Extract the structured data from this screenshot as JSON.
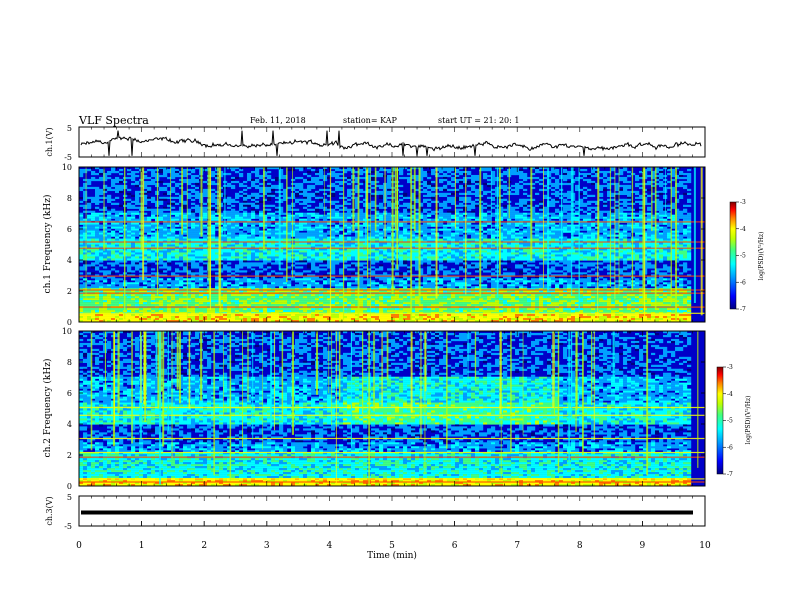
{
  "header": {
    "title": "VLF Spectra",
    "date": "Feb. 11, 2018",
    "station": "station= KAP",
    "start": "start  UT  =   21: 20: 1"
  },
  "chart_data": [
    {
      "type": "line",
      "ylabel": "ch.1(V)",
      "ylim": [
        -5,
        5
      ],
      "yticks": [
        "5",
        "-5"
      ],
      "xlim": [
        0,
        10
      ],
      "description_series": "noisy waveform around -1 V"
    },
    {
      "type": "heatmap",
      "ylabel": "ch.1  Frequency  (kHz)",
      "ylim": [
        0,
        10
      ],
      "yticks": [
        "0",
        "2",
        "4",
        "6",
        "8",
        "10"
      ],
      "xlim": [
        0,
        10
      ],
      "colorbar": {
        "label": "log(PSD)(V²/Hz)",
        "ticks": [
          "-3",
          "-4",
          "-5",
          "-6",
          "-7"
        ],
        "range": [
          -7,
          -3
        ]
      }
    },
    {
      "type": "heatmap",
      "ylabel": "ch.2  Frequency  (kHz)",
      "ylim": [
        0,
        10
      ],
      "yticks": [
        "0",
        "2",
        "4",
        "6",
        "8",
        "10"
      ],
      "xlim": [
        0,
        10
      ],
      "colorbar": {
        "label": "log(PSD)(V²/Hz)",
        "ticks": [
          "-3",
          "-4",
          "-5",
          "-6",
          "-7"
        ],
        "range": [
          -7,
          -3
        ]
      }
    },
    {
      "type": "line",
      "ylabel": "ch.3(V)",
      "ylim": [
        -5,
        5
      ],
      "yticks": [
        "5",
        "-5"
      ],
      "xlim": [
        0,
        10
      ],
      "xlabel": "Time  (min)",
      "xticks": [
        "0",
        "1",
        "2",
        "3",
        "4",
        "5",
        "6",
        "7",
        "8",
        "9",
        "10"
      ],
      "series_value": -0.5
    }
  ],
  "colors": {
    "line": "#000000",
    "cmap": [
      "#000080",
      "#0000ff",
      "#00a0ff",
      "#00ffff",
      "#40ff80",
      "#c0ff00",
      "#ffff00",
      "#ff8000",
      "#ff0000",
      "#800000"
    ]
  }
}
